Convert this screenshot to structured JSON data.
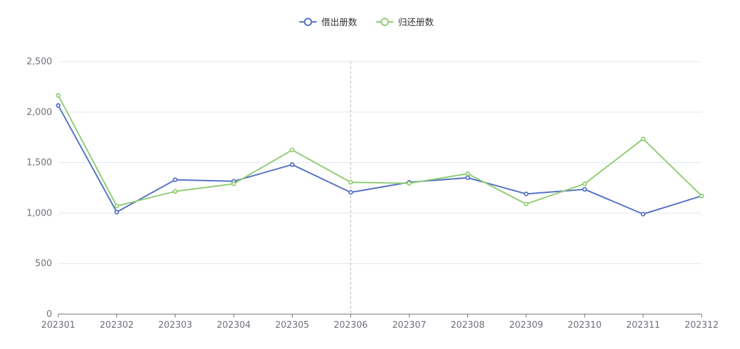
{
  "chart_data": {
    "type": "line",
    "title": "",
    "xlabel": "",
    "ylabel": "",
    "categories": [
      "202301",
      "202302",
      "202303",
      "202304",
      "202305",
      "202306",
      "202307",
      "202308",
      "202309",
      "202310",
      "202311",
      "202312"
    ],
    "series": [
      {
        "name": "借出册数",
        "color": "#5470c6",
        "values": [
          2065,
          1010,
          1330,
          1315,
          1480,
          1205,
          1305,
          1350,
          1190,
          1235,
          990,
          1170
        ]
      },
      {
        "name": "归还册数",
        "color": "#91cc75",
        "values": [
          2165,
          1070,
          1215,
          1290,
          1625,
          1305,
          1295,
          1390,
          1090,
          1290,
          1735,
          1170
        ]
      }
    ],
    "ylim": [
      0,
      2500
    ],
    "yticks": [
      0,
      500,
      1000,
      1500,
      2000,
      2500
    ],
    "ytick_labels": [
      "0",
      "500",
      "1,000",
      "1,500",
      "2,000",
      "2,500"
    ],
    "grid": true,
    "legend_position": "top-center",
    "highlighted_category": "202306"
  }
}
